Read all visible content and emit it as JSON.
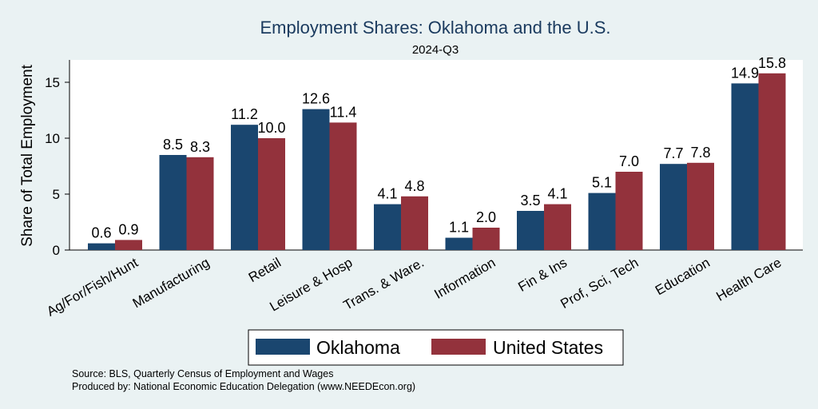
{
  "chart_data": {
    "type": "bar",
    "title": "Employment Shares: Oklahoma and the U.S.",
    "subtitle": "2024-Q3",
    "ylabel": "Share of Total Employment",
    "ylim": [
      0,
      17
    ],
    "yticks": [
      0,
      5,
      10,
      15
    ],
    "grid": false,
    "legend_position": "bottom",
    "categories": [
      "Ag/For/Fish/Hunt",
      "Manufacturing",
      "Retail",
      "Leisure & Hosp",
      "Trans. & Ware.",
      "Information",
      "Fin & Ins",
      "Prof, Sci, Tech",
      "Education",
      "Health Care"
    ],
    "series": [
      {
        "name": "Oklahoma",
        "color": "#1a466f",
        "values": [
          0.6,
          8.5,
          11.2,
          12.6,
          4.1,
          1.1,
          3.5,
          5.1,
          7.7,
          14.9
        ],
        "labels": [
          "0.6",
          "8.5",
          "11.2",
          "12.6",
          "4.1",
          "1.1",
          "3.5",
          "5.1",
          "7.7",
          "14.9"
        ]
      },
      {
        "name": "United States",
        "color": "#93323c",
        "values": [
          0.9,
          8.3,
          10.0,
          11.4,
          4.8,
          2.0,
          4.1,
          7.0,
          7.8,
          15.8
        ],
        "labels": [
          "0.9",
          "8.3",
          "10.0",
          "11.4",
          "4.8",
          "2.0",
          "4.1",
          "7.0",
          "7.8",
          "15.8"
        ]
      }
    ],
    "notes": [
      "Source: BLS, Quarterly Census of Employment and Wages",
      "Produced by: National Economic Education Delegation (www.NEEDEcon.org)"
    ]
  }
}
